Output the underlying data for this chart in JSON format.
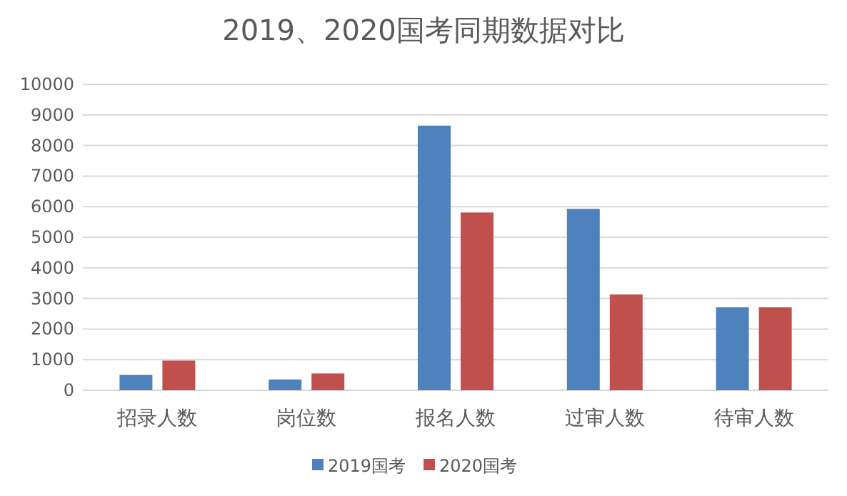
{
  "chart_data": {
    "type": "bar",
    "title": "2019、2020国考同期数据对比",
    "categories": [
      "招录人数",
      "岗位数",
      "报名人数",
      "过审人数",
      "待审人数"
    ],
    "series": [
      {
        "name": "2019国考",
        "color": "#4f81bd",
        "values": [
          500,
          350,
          8650,
          5930,
          2710
        ]
      },
      {
        "name": "2020国考",
        "color": "#c0504d",
        "values": [
          970,
          550,
          5810,
          3130,
          2710
        ]
      }
    ],
    "ylim": [
      0,
      10000
    ],
    "yticks": [
      0,
      1000,
      2000,
      3000,
      4000,
      5000,
      6000,
      7000,
      8000,
      9000,
      10000
    ],
    "grid": "y",
    "legend": "bottom"
  }
}
